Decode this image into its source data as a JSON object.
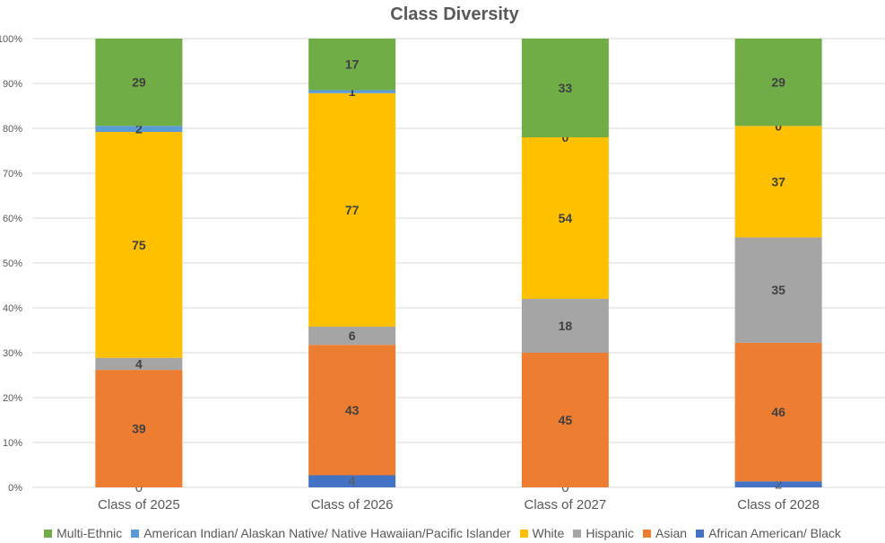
{
  "chart_data": {
    "type": "bar",
    "stacked": "percent",
    "title": "Class Diversity",
    "categories": [
      "Class of 2025",
      "Class of 2026",
      "Class of 2027",
      "Class of 2028"
    ],
    "series": [
      {
        "name": "African American/ Black",
        "color": "#4472C4",
        "values": [
          0,
          4,
          0,
          2
        ]
      },
      {
        "name": "Asian",
        "color": "#ED7D31",
        "values": [
          39,
          43,
          45,
          46
        ]
      },
      {
        "name": "Hispanic",
        "color": "#A5A5A5",
        "values": [
          4,
          6,
          18,
          35
        ]
      },
      {
        "name": "White",
        "color": "#FFC000",
        "values": [
          75,
          77,
          54,
          37
        ]
      },
      {
        "name": "American Indian/ Alaskan Native/ Native Hawaiian/Pacific Islander",
        "color": "#5B9BD5",
        "values": [
          2,
          1,
          0,
          0
        ]
      },
      {
        "name": "Multi-Ethnic",
        "color": "#70AD47",
        "values": [
          29,
          17,
          33,
          29
        ]
      }
    ],
    "legend_order": [
      "Multi-Ethnic",
      "American Indian/ Alaskan Native/ Native Hawaiian/Pacific Islander",
      "White",
      "Hispanic",
      "Asian",
      "African American/ Black"
    ],
    "yticks": [
      "0%",
      "10%",
      "20%",
      "30%",
      "40%",
      "50%",
      "60%",
      "70%",
      "80%",
      "90%",
      "100%"
    ],
    "ylim": [
      0,
      100
    ],
    "grid": true,
    "legend_position": "bottom"
  }
}
